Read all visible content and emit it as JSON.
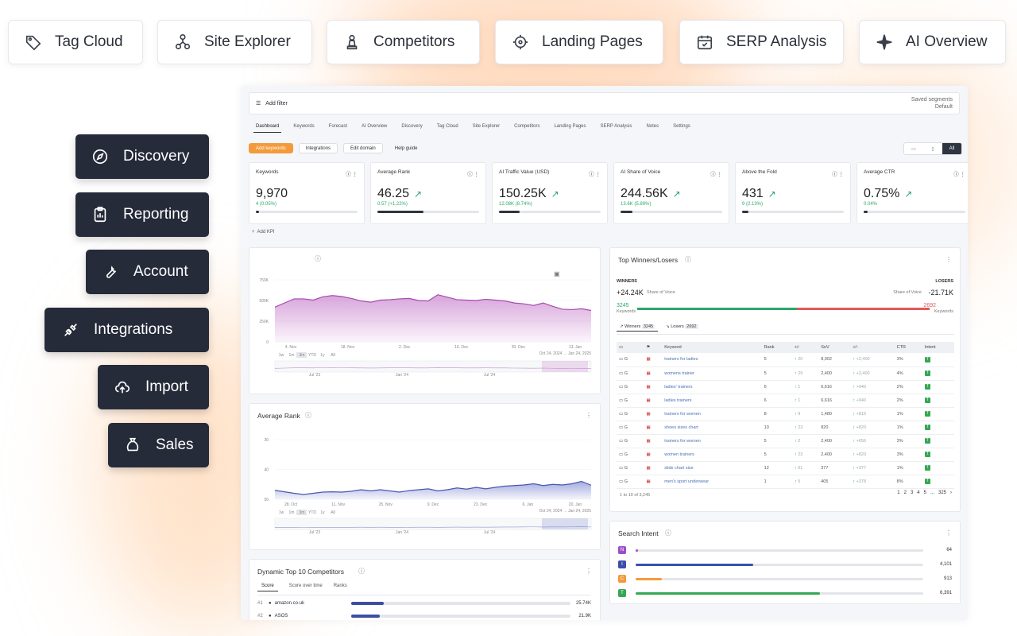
{
  "top_tabs": [
    {
      "label": "Tag Cloud",
      "icon": "tag-icon"
    },
    {
      "label": "Site Explorer",
      "icon": "sitemap-icon"
    },
    {
      "label": "Competitors",
      "icon": "chess-pawn-icon"
    },
    {
      "label": "Landing Pages",
      "icon": "target-icon"
    },
    {
      "label": "SERP Analysis",
      "icon": "calendar-check-icon"
    },
    {
      "label": "AI Overview",
      "icon": "sparkle-icon"
    }
  ],
  "side_buttons": [
    {
      "label": "Discovery",
      "icon": "compass-icon"
    },
    {
      "label": "Reporting",
      "icon": "clipboard-icon"
    },
    {
      "label": "Account",
      "icon": "wrench-icon"
    },
    {
      "label": "Integrations",
      "icon": "plug-icon"
    },
    {
      "label": "Import",
      "icon": "cloud-upload-icon"
    },
    {
      "label": "Sales",
      "icon": "money-bag-icon"
    }
  ],
  "filter": {
    "add_filter": "Add filter",
    "saved_label": "Saved segments",
    "saved_value": "Default"
  },
  "nav": [
    "Dashboard",
    "Keywords",
    "Forecast",
    "AI Overview",
    "Discovery",
    "Tag Cloud",
    "Site Explorer",
    "Competitors",
    "Landing Pages",
    "SERP Analysis",
    "Notes",
    "Settings"
  ],
  "toolbar": {
    "add_keywords": "Add keywords",
    "integrations": "Integrations",
    "edit_domain": "Edit domain",
    "help": "Help guide"
  },
  "views": [
    "All"
  ],
  "kpis": [
    {
      "label": "Keywords",
      "value": "9,970",
      "delta": "4 (0.05%)",
      "fill": 0.03
    },
    {
      "label": "Average Rank",
      "value": "46.25",
      "delta": "0.57 (+1.22%)",
      "fill": 0.45
    },
    {
      "label": "AI Traffic Value (USD)",
      "value": "150.25K",
      "delta": "12.08K (8.74%)",
      "fill": 0.2
    },
    {
      "label": "AI Share of Voice",
      "value": "244.56K",
      "delta": "13.6K (5.89%)",
      "fill": 0.12
    },
    {
      "label": "Above the Fold",
      "value": "431",
      "delta": "9 (2.13%)",
      "fill": 0.06
    },
    {
      "label": "Average CTR",
      "value": "0.75%",
      "delta": "0.04%",
      "fill": 0.04
    }
  ],
  "add_kpi": "Add KPI",
  "chart_visibility": {
    "type": "area",
    "y_ticks": [
      "750K",
      "500K",
      "250K",
      "0"
    ],
    "x_ticks": [
      "4. Nov",
      "18. Nov",
      "2. Dec",
      "16. Dec",
      "30. Dec",
      "13. Jan"
    ],
    "ranges": [
      "1w",
      "1m",
      "3m",
      "YTD",
      "1y",
      "All"
    ],
    "date_range": "Oct 24, 2024  →  Jan 24, 2025",
    "nav_ticks": [
      "Jul '23",
      "Jan '24",
      "Jul '24"
    ],
    "values": [
      420,
      470,
      520,
      520,
      505,
      545,
      560,
      548,
      525,
      495,
      480,
      505,
      510,
      520,
      525,
      500,
      495,
      570,
      540,
      510,
      505,
      500,
      515,
      505,
      495,
      470,
      460,
      440,
      470,
      430,
      395,
      390,
      400,
      380
    ]
  },
  "chart_rank": {
    "title": "Average Rank",
    "type": "area",
    "y_ticks": [
      "30",
      "40",
      "50"
    ],
    "x_ticks": [
      "28. Oct",
      "11. Nov",
      "25. Nov",
      "9. Dec",
      "23. Dec",
      "6. Jan",
      "20. Jan"
    ],
    "ranges": [
      "1w",
      "1m",
      "3m",
      "YTD",
      "1y",
      "All"
    ],
    "date_range": "Oct 24, 2024  →  Jan 24, 2025",
    "nav_ticks": [
      "Jul '23",
      "Jan '24",
      "Jul '24"
    ],
    "values": [
      47,
      47.5,
      48,
      48.4,
      48,
      47.6,
      47.5,
      47.6,
      47.3,
      46.8,
      47.2,
      46.8,
      47.2,
      47.6,
      47.1,
      46.8,
      46.5,
      47.2,
      46.8,
      46.2,
      46.6,
      46,
      46.5,
      46,
      45.6,
      45.4,
      45.2,
      44.8,
      45.4,
      45,
      45.2,
      44.8,
      44,
      45.3
    ]
  },
  "winners": {
    "title": "Top Winners/Losers",
    "winners_label": "WINNERS",
    "losers_label": "LOSERS",
    "winners_sov": "+24.24K",
    "losers_sov": "-21.71K",
    "sov_label": "Share of Voice",
    "winners_count": "3245",
    "losers_count": "2692",
    "kw_label": "Keywords",
    "tab_winners": "Winners",
    "tab_losers": "Losers",
    "headers": [
      "Keyword",
      "Rank",
      "+/-",
      "SoV",
      "+/-",
      "CTR",
      "Intent"
    ],
    "rows": [
      [
        "trainers for ladies",
        "5",
        "20",
        "8,002",
        "+2,400",
        "3%"
      ],
      [
        "womens trainer",
        "5",
        "29",
        "2,400",
        "+2,400",
        "4%"
      ],
      [
        "ladies' trainers",
        "6",
        "1",
        "6,616",
        "+940",
        "2%"
      ],
      [
        "ladies trainers",
        "6",
        "1",
        "6,616",
        "+940",
        "2%"
      ],
      [
        "trainers for women",
        "8",
        "9",
        "1,480",
        "+816",
        "1%"
      ],
      [
        "shoes sizes chart",
        "10",
        "23",
        "820",
        "+820",
        "1%"
      ],
      [
        "trainers for women",
        "5",
        "2",
        "2,400",
        "+656",
        "3%"
      ],
      [
        "women trainers",
        "5",
        "23",
        "2,400",
        "+820",
        "3%"
      ],
      [
        "slide chart size",
        "12",
        "61",
        "377",
        "+377",
        "1%"
      ],
      [
        "men's sport underwear",
        "1",
        "5",
        "405",
        "+378",
        "8%"
      ]
    ],
    "footer": "1 to 10 of 3,245",
    "pages": [
      "1",
      "2",
      "3",
      "4",
      "5",
      "...",
      "325"
    ]
  },
  "intent": {
    "title": "Search Intent",
    "rows": [
      {
        "badge": "N",
        "color": "#9b4fc9",
        "value": "64",
        "fill": 0.008,
        "bar": "#9b4fc9"
      },
      {
        "badge": "I",
        "color": "#3b4fa8",
        "value": "4,101",
        "fill": 0.41,
        "bar": "#3b4fa8"
      },
      {
        "badge": "C",
        "color": "#f39a3c",
        "value": "913",
        "fill": 0.09,
        "bar": "#f39a3c"
      },
      {
        "badge": "T",
        "color": "#34a853",
        "value": "6,391",
        "fill": 0.64,
        "bar": "#34a853"
      }
    ]
  },
  "competitors": {
    "title": "Dynamic Top 10 Competitors",
    "tabs": [
      "Score",
      "Score over time",
      "Ranks"
    ],
    "rows": [
      {
        "rank": "#1",
        "name": "amazon.co.uk",
        "value": "25.74K",
        "fill": 0.15
      },
      {
        "rank": "#2",
        "name": "ASOS",
        "value": "21.9K",
        "fill": 0.13
      }
    ]
  }
}
